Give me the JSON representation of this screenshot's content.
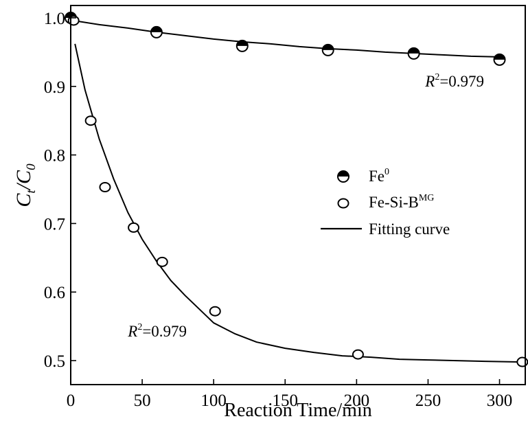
{
  "chart_data": {
    "type": "scatter",
    "xlabel": "Reaction Time/min",
    "ylabel": {
      "main": "C",
      "sub1": "t",
      "mid": "/C",
      "sub2": "0"
    },
    "xlim": [
      0,
      318
    ],
    "ylim": [
      0.465,
      1.018
    ],
    "x_ticks": [
      0,
      50,
      100,
      150,
      200,
      250,
      300
    ],
    "x_tick_labels": [
      "0",
      "50",
      "100",
      "150",
      "200",
      "250",
      "300"
    ],
    "y_ticks": [
      0.5,
      0.6,
      0.7,
      0.8,
      0.9,
      1.0
    ],
    "y_tick_labels": [
      "0.5",
      "0.6",
      "0.7",
      "0.8",
      "0.9",
      "1.0"
    ],
    "legend_position": "right",
    "legend": [
      {
        "key": "fe0",
        "label": "Fe",
        "sup": "0",
        "marker": "half-filled-circle"
      },
      {
        "key": "fesib",
        "label": "Fe-Si-B",
        "sup": "MG",
        "marker": "open-circle"
      },
      {
        "key": "fit",
        "label": "Fitting curve",
        "marker": "line"
      }
    ],
    "series": [
      {
        "key": "fe0",
        "x": [
          0,
          60,
          120,
          180,
          240,
          300
        ],
        "y": [
          1.0,
          0.979,
          0.959,
          0.953,
          0.948,
          0.939
        ]
      },
      {
        "key": "fesib",
        "x": [
          2,
          14,
          24,
          44,
          64,
          101,
          201,
          316
        ],
        "y": [
          0.996,
          0.85,
          0.753,
          0.694,
          0.644,
          0.572,
          0.509,
          0.498
        ]
      }
    ],
    "fit_curves": [
      {
        "for": "fe0",
        "x": [
          2,
          20,
          40,
          60,
          80,
          100,
          120,
          140,
          160,
          180,
          200,
          220,
          240,
          260,
          280,
          300
        ],
        "y": [
          0.996,
          0.99,
          0.985,
          0.979,
          0.974,
          0.969,
          0.965,
          0.962,
          0.958,
          0.955,
          0.953,
          0.95,
          0.948,
          0.946,
          0.944,
          0.943
        ]
      },
      {
        "for": "fesib",
        "x": [
          3,
          10,
          20,
          30,
          40,
          50,
          60,
          70,
          80,
          90,
          100,
          115,
          130,
          150,
          170,
          190,
          210,
          230,
          250,
          270,
          290,
          316
        ],
        "y": [
          0.962,
          0.895,
          0.823,
          0.765,
          0.716,
          0.677,
          0.645,
          0.617,
          0.595,
          0.575,
          0.555,
          0.539,
          0.527,
          0.518,
          0.512,
          0.507,
          0.505,
          0.502,
          0.501,
          0.5,
          0.499,
          0.498
        ]
      }
    ],
    "annotations": [
      {
        "for": "fe0",
        "r_letter": "R",
        "r_sup": "2",
        "value_text": "=0.979",
        "x": 248,
        "y": 0.9
      },
      {
        "for": "fesib",
        "r_letter": "R",
        "r_sup": "2",
        "value_text": "=0.979",
        "x": 40,
        "y": 0.535
      }
    ]
  }
}
